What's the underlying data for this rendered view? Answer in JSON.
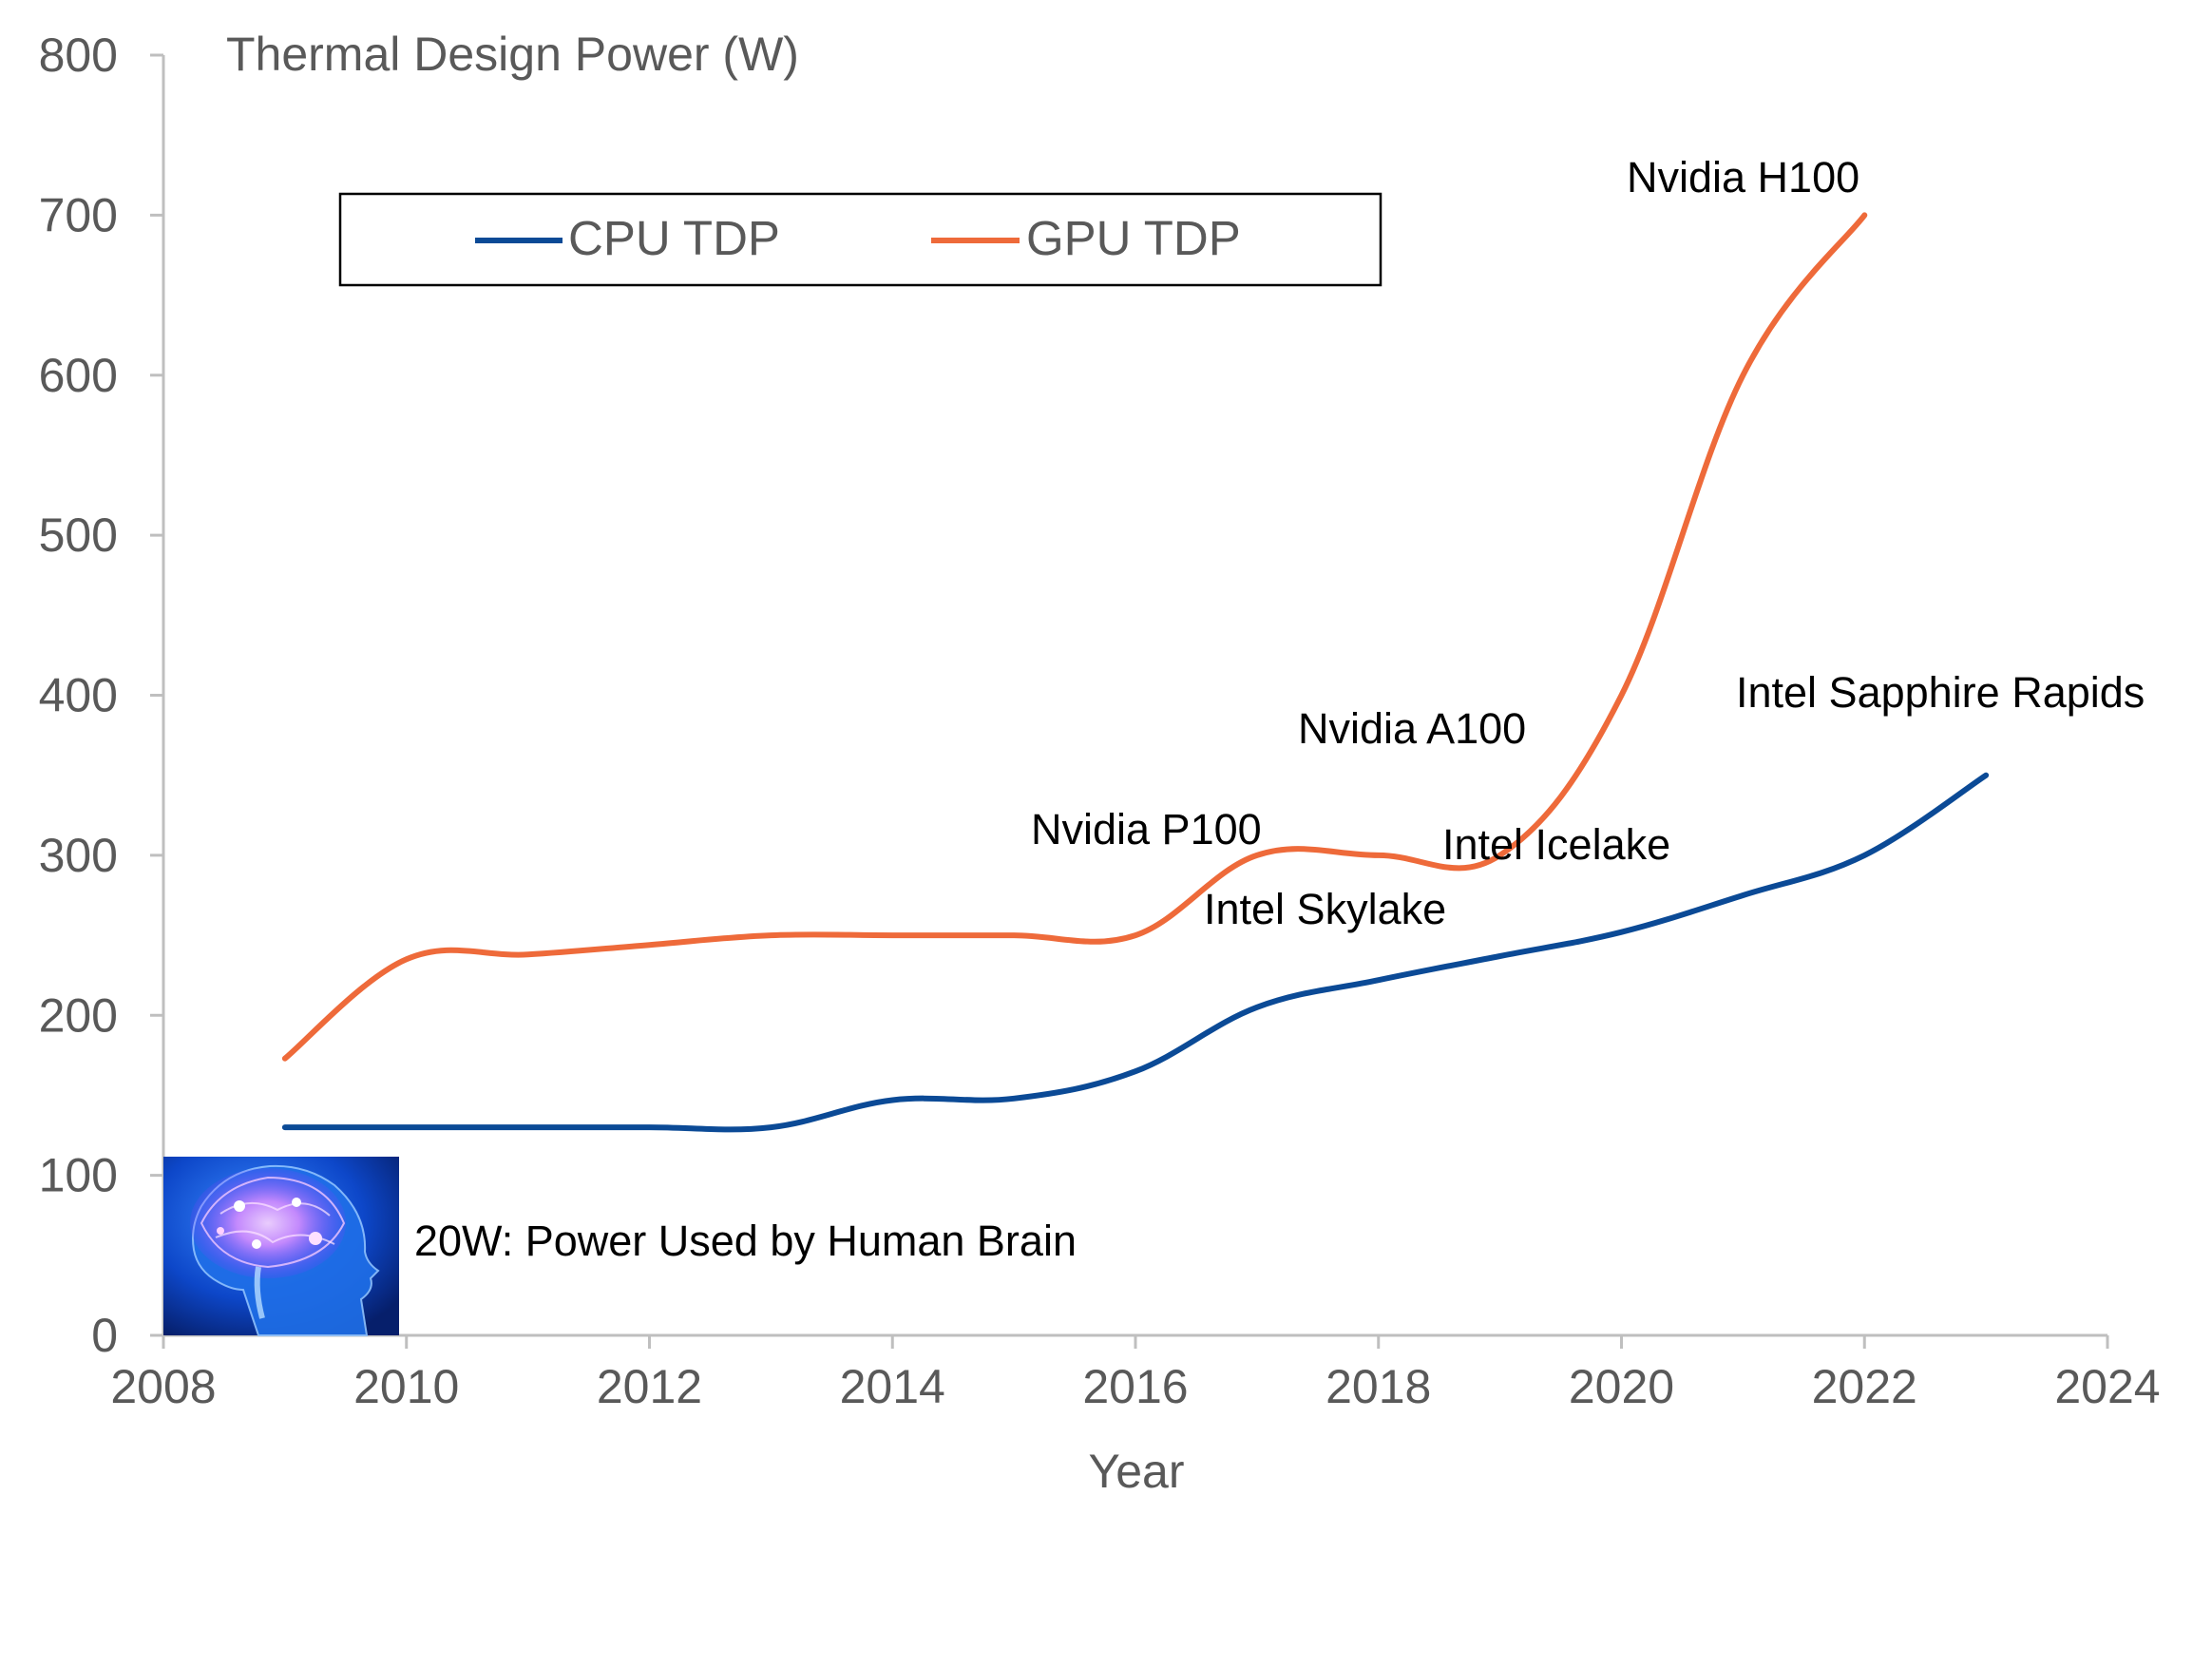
{
  "chart_data": {
    "type": "line",
    "title": "",
    "ylabel": "Thermal Design Power (W)",
    "xlabel": "Year",
    "xlim": [
      2008,
      2024
    ],
    "ylim": [
      0,
      800
    ],
    "xticks": [
      "2008",
      "2010",
      "2012",
      "2014",
      "2016",
      "2018",
      "2020",
      "2022",
      "2024"
    ],
    "yticks": [
      "0",
      "100",
      "200",
      "300",
      "400",
      "500",
      "600",
      "700",
      "800"
    ],
    "grid": false,
    "legend_position": "top-left",
    "series": [
      {
        "name": "CPU TDP",
        "color": "#0B4A96",
        "points": [
          [
            2009,
            130
          ],
          [
            2010,
            130
          ],
          [
            2011,
            130
          ],
          [
            2012,
            130
          ],
          [
            2013,
            130
          ],
          [
            2014,
            147
          ],
          [
            2015,
            148
          ],
          [
            2016,
            165
          ],
          [
            2017,
            205
          ],
          [
            2018,
            222
          ],
          [
            2019,
            237
          ],
          [
            2020,
            252
          ],
          [
            2021,
            275
          ],
          [
            2022,
            300
          ],
          [
            2023,
            350
          ]
        ]
      },
      {
        "name": "GPU TDP",
        "color": "#EE6A3A",
        "points": [
          [
            2009,
            173
          ],
          [
            2010,
            235
          ],
          [
            2011,
            238
          ],
          [
            2012,
            244
          ],
          [
            2013,
            250
          ],
          [
            2014,
            250
          ],
          [
            2015,
            250
          ],
          [
            2016,
            250
          ],
          [
            2017,
            300
          ],
          [
            2018,
            300
          ],
          [
            2019,
            300
          ],
          [
            2020,
            400
          ],
          [
            2021,
            600
          ],
          [
            2022,
            700
          ]
        ]
      }
    ],
    "annotations": [
      {
        "text": "Nvidia H100",
        "x": 2022,
        "y": 700
      },
      {
        "text": "Intel Sapphire Rapids",
        "x": 2023,
        "y": 350
      },
      {
        "text": "Nvidia A100",
        "x": 2019,
        "y": 300
      },
      {
        "text": "Nvidia P100",
        "x": 2016,
        "y": 250
      },
      {
        "text": "Intel Icelake",
        "x": 2020,
        "y": 252
      },
      {
        "text": "Intel Skylake",
        "x": 2017,
        "y": 205
      },
      {
        "text": "20W: Power Used by Human Brain",
        "x": 2009,
        "y": 20
      }
    ]
  },
  "brain_icon": "human-brain-head-image"
}
